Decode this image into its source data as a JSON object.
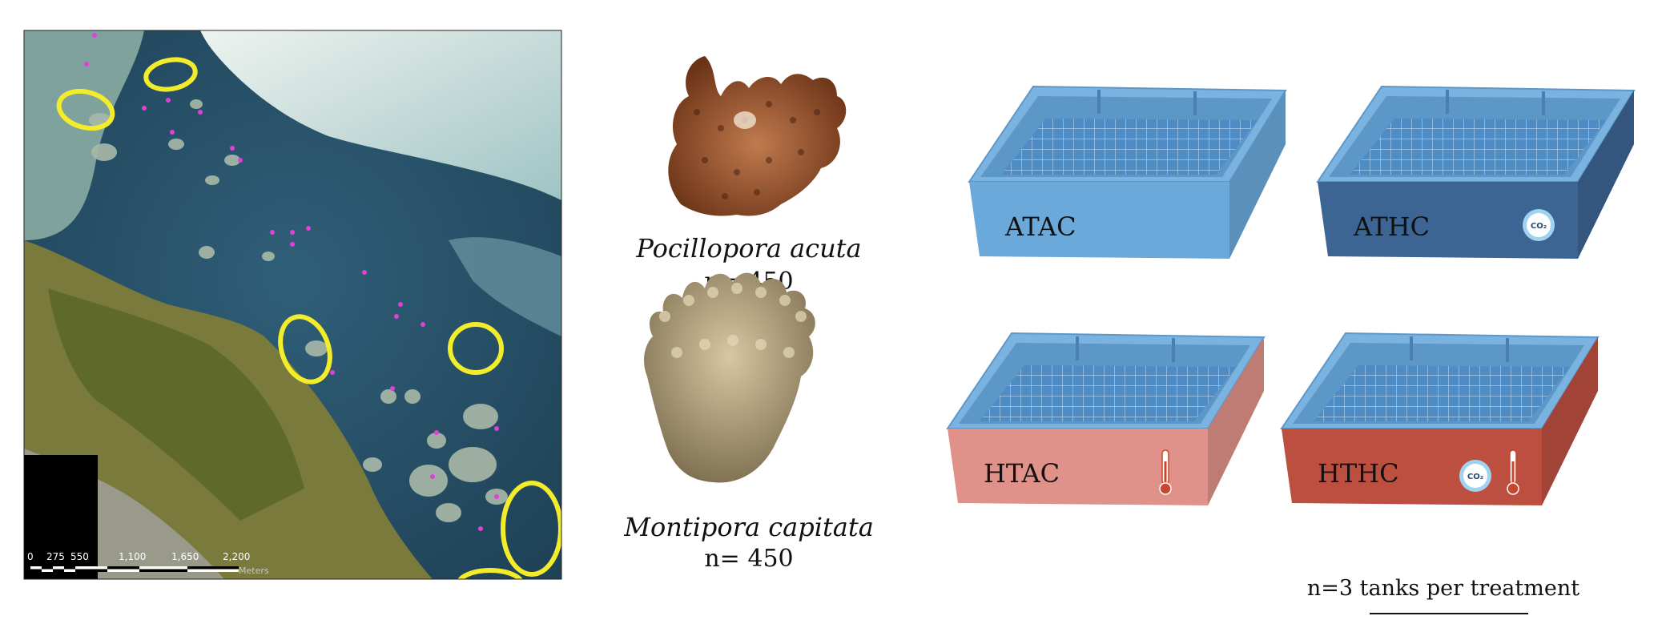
{
  "map": {
    "scale_labels": [
      "0",
      "275",
      "550",
      "1,100",
      "1,650",
      "2,200"
    ],
    "scale_unit": "Meters"
  },
  "corals": [
    {
      "name": "Pocillopora acuta",
      "count": "n= 450"
    },
    {
      "name": "Montipora capitata",
      "count": "n= 450"
    }
  ],
  "tanks": [
    {
      "label": "ATAC",
      "co2": false,
      "thermometer": false,
      "color": "#6aa9da"
    },
    {
      "label": "ATHC",
      "co2": true,
      "thermometer": false,
      "color": "#3d6594"
    },
    {
      "label": "HTAC",
      "co2": false,
      "thermometer": true,
      "color": "#e0928a"
    },
    {
      "label": "HTHC",
      "co2": true,
      "thermometer": true,
      "color": "#bd4f40"
    }
  ],
  "co2_icon_text": "CO₂",
  "footer": "n=3 tanks per treatment"
}
